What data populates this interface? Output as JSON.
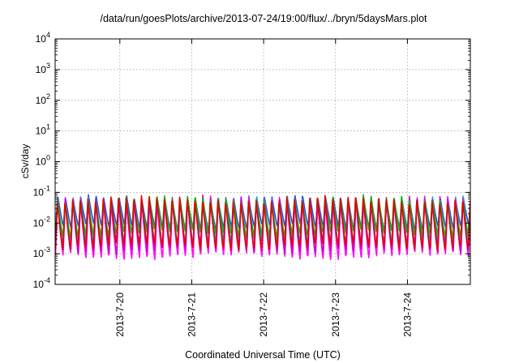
{
  "chart_data": {
    "type": "line",
    "title": "/data/run/goesPlots/archive/2013-07-24/19:00/flux/../bryn/5daysMars.plot",
    "xlabel": "Coordinated Universal Time (UTC)",
    "ylabel": "cSv/day",
    "y_scale": "log",
    "ylim": [
      0.0001,
      10000
    ],
    "y_ticks": [
      {
        "value": 0.0001,
        "base": "10",
        "exp": "-4"
      },
      {
        "value": 0.001,
        "base": "10",
        "exp": "-3"
      },
      {
        "value": 0.01,
        "base": "10",
        "exp": "-2"
      },
      {
        "value": 0.1,
        "base": "10",
        "exp": "-1"
      },
      {
        "value": 1,
        "base": "10",
        "exp": "0"
      },
      {
        "value": 10,
        "base": "10",
        "exp": "1"
      },
      {
        "value": 100,
        "base": "10",
        "exp": "2"
      },
      {
        "value": 1000,
        "base": "10",
        "exp": "3"
      },
      {
        "value": 10000,
        "base": "10",
        "exp": "4"
      }
    ],
    "x_ticks": [
      "2013-7-20",
      "2013-7-21",
      "2013-7-22",
      "2013-7-23",
      "2013-7-24"
    ],
    "x_range_days": [
      "2013-7-19 02:24",
      "2013-7-24 21:00"
    ],
    "grid": true,
    "legend": "none",
    "oscillation": {
      "cycles_per_day": 9.4,
      "peak_log": -1.2,
      "trough_log_by_series": [
        -2.15,
        -2.7,
        -3.1,
        -2.9,
        -2.35,
        -2.8
      ]
    },
    "series": [
      {
        "color": "#1f3fff"
      },
      {
        "color": "#00b4b4"
      },
      {
        "color": "#ff00ff"
      },
      {
        "color": "#cc00cc"
      },
      {
        "color": "#00c000"
      },
      {
        "color": "#e60000"
      }
    ]
  }
}
